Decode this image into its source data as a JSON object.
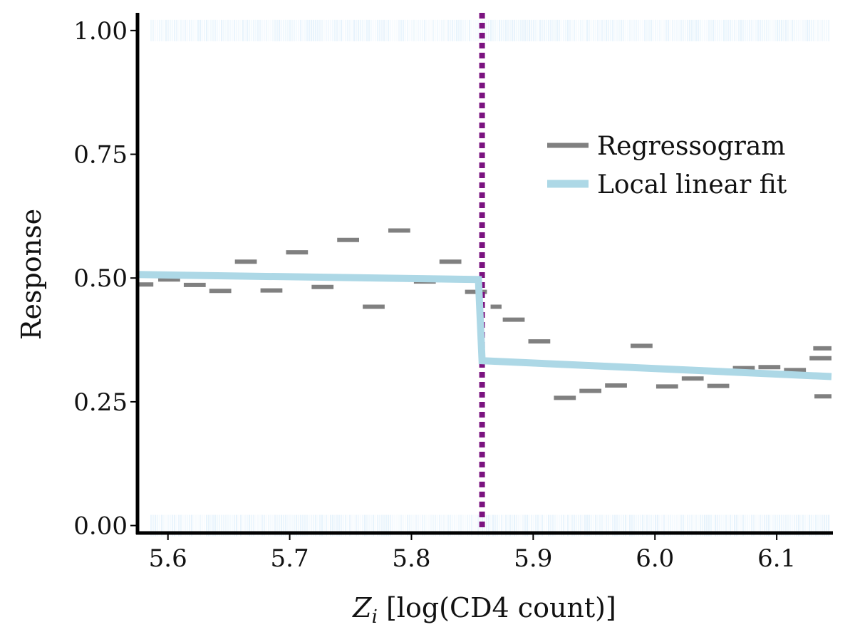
{
  "chart_data": {
    "type": "line",
    "xlabel": "Z_i [log(CD4 count)]",
    "xlabel_var": "Z",
    "xlabel_sub": "i",
    "xlabel_rest": " [log(CD4 count)]",
    "ylabel": "Response",
    "xlim": [
      5.575,
      6.145
    ],
    "ylim": [
      -0.015,
      1.03
    ],
    "x_ticks": [
      5.6,
      5.7,
      5.8,
      5.9,
      6.0,
      6.1
    ],
    "x_tick_labels": [
      "5.6",
      "5.7",
      "5.8",
      "5.9",
      "6.0",
      "6.1"
    ],
    "y_ticks": [
      0.0,
      0.25,
      0.5,
      0.75,
      1.0
    ],
    "y_tick_labels": [
      "0.00",
      "0.25",
      "0.50",
      "0.75",
      "1.00"
    ],
    "grid": false,
    "legend_position": "right",
    "cutoff": 5.858,
    "series": [
      {
        "name": "Regressogram",
        "kind": "step-segments",
        "color": "#808080",
        "segments": [
          {
            "x0": 5.575,
            "x1": 5.588,
            "y": 0.487
          },
          {
            "x0": 5.592,
            "x1": 5.61,
            "y": 0.497
          },
          {
            "x0": 5.613,
            "x1": 5.631,
            "y": 0.486
          },
          {
            "x0": 5.634,
            "x1": 5.652,
            "y": 0.474
          },
          {
            "x0": 5.655,
            "x1": 5.673,
            "y": 0.533
          },
          {
            "x0": 5.676,
            "x1": 5.694,
            "y": 0.475
          },
          {
            "x0": 5.697,
            "x1": 5.715,
            "y": 0.552
          },
          {
            "x0": 5.718,
            "x1": 5.736,
            "y": 0.482
          },
          {
            "x0": 5.739,
            "x1": 5.757,
            "y": 0.577
          },
          {
            "x0": 5.76,
            "x1": 5.778,
            "y": 0.442
          },
          {
            "x0": 5.781,
            "x1": 5.799,
            "y": 0.596
          },
          {
            "x0": 5.802,
            "x1": 5.82,
            "y": 0.493
          },
          {
            "x0": 5.823,
            "x1": 5.841,
            "y": 0.533
          },
          {
            "x0": 5.844,
            "x1": 5.862,
            "y": 0.472
          },
          {
            "x0": 5.865,
            "x1": 5.874,
            "y": 0.442
          },
          {
            "x0": 5.875,
            "x1": 5.893,
            "y": 0.416
          },
          {
            "x0": 5.896,
            "x1": 5.914,
            "y": 0.372
          },
          {
            "x0": 5.917,
            "x1": 5.935,
            "y": 0.258
          },
          {
            "x0": 5.938,
            "x1": 5.956,
            "y": 0.272
          },
          {
            "x0": 5.959,
            "x1": 5.977,
            "y": 0.283
          },
          {
            "x0": 5.98,
            "x1": 5.998,
            "y": 0.363
          },
          {
            "x0": 6.001,
            "x1": 6.019,
            "y": 0.281
          },
          {
            "x0": 6.022,
            "x1": 6.04,
            "y": 0.297
          },
          {
            "x0": 6.043,
            "x1": 6.061,
            "y": 0.282
          },
          {
            "x0": 6.064,
            "x1": 6.082,
            "y": 0.318
          },
          {
            "x0": 6.085,
            "x1": 6.103,
            "y": 0.32
          },
          {
            "x0": 6.106,
            "x1": 6.124,
            "y": 0.314
          },
          {
            "x0": 6.127,
            "x1": 6.145,
            "y": 0.338
          },
          {
            "x0": 6.13,
            "x1": 6.145,
            "y": 0.358
          },
          {
            "x0": 6.131,
            "x1": 6.145,
            "y": 0.261
          }
        ]
      },
      {
        "name": "Local linear fit",
        "kind": "line",
        "color": "#add8e6",
        "points": [
          {
            "x": 5.575,
            "y": 0.507
          },
          {
            "x": 5.855,
            "y": 0.497
          },
          {
            "x": 5.858,
            "y": 0.333
          },
          {
            "x": 6.145,
            "y": 0.301
          }
        ]
      }
    ],
    "cutoff_line": {
      "color": "#7b1380",
      "style": "dotted"
    },
    "rug_color": "#dceefb"
  }
}
